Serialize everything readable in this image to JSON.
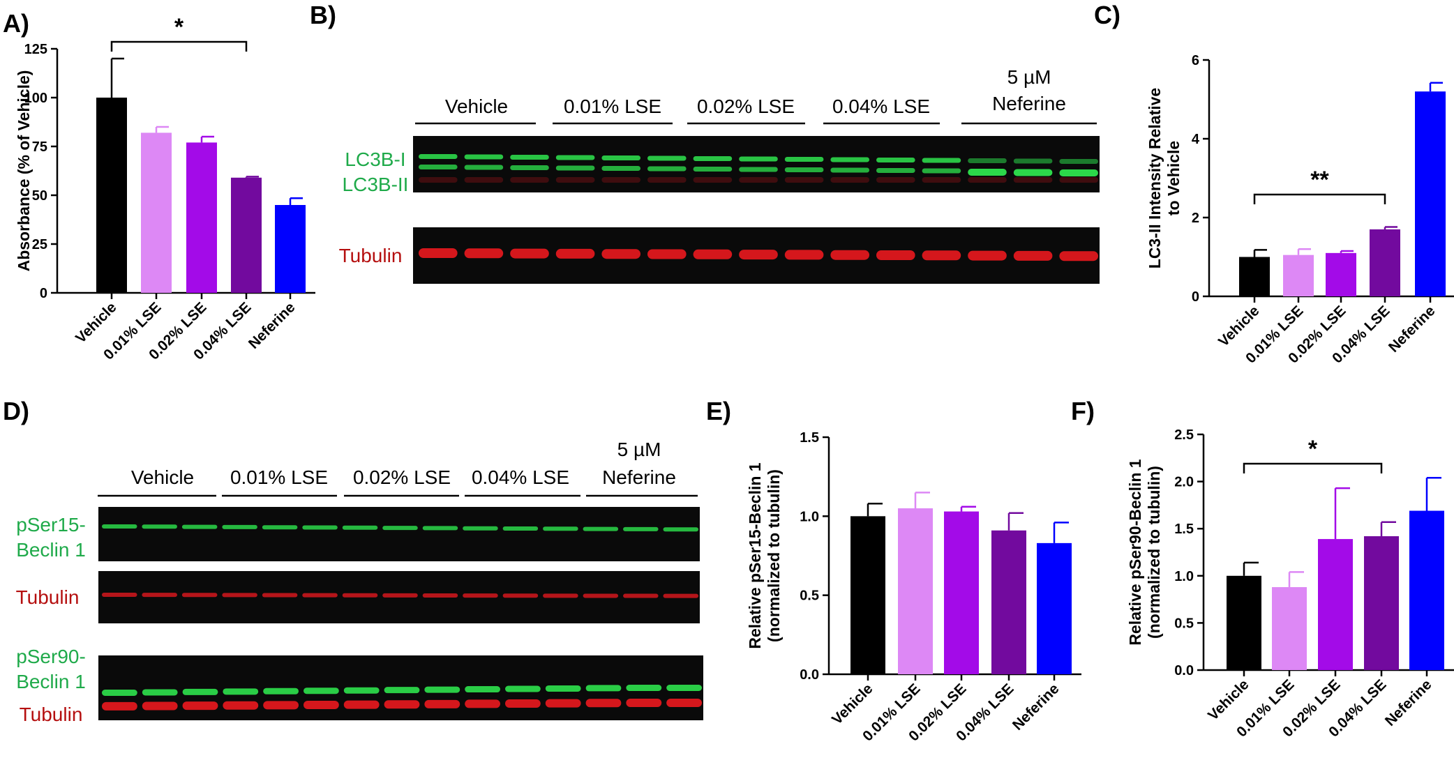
{
  "colors": {
    "vehicle": "#000000",
    "lse001": "#dd88f5",
    "lse002": "#a30be8",
    "lse004": "#720a9e",
    "neferine": "#0000ff",
    "green_label": "#1faa4a",
    "red_label": "#b50f0f",
    "blot_bg": "#0a0a0a",
    "green_band": "#2cd84a",
    "red_band": "#e0181e"
  },
  "panels": {
    "A": "A)",
    "B": "B)",
    "C": "C)",
    "D": "D)",
    "E": "E)",
    "F": "F)"
  },
  "blot_B": {
    "groups": [
      "Vehicle",
      "0.01% LSE",
      "0.02% LSE",
      "0.04% LSE"
    ],
    "neferine_top": "5 µM",
    "neferine_bottom": "Neferine",
    "label_lc3bi": "LC3B-I",
    "label_lc3bii": "LC3B-II",
    "label_tubulin": "Tubulin"
  },
  "blot_D": {
    "groups": [
      "Vehicle",
      "0.01% LSE",
      "0.02% LSE",
      "0.04% LSE"
    ],
    "neferine_top": "5 µM",
    "neferine_bottom": "Neferine",
    "label_pser15_a": "pSer15-",
    "label_pser15_b": "Beclin 1",
    "label_tubulin1": "Tubulin",
    "label_pser90_a": "pSer90-",
    "label_pser90_b": "Beclin 1",
    "label_tubulin2": "Tubulin"
  },
  "chart_data": [
    {
      "id": "A",
      "type": "bar",
      "categories": [
        "Vehicle",
        "0.01% LSE",
        "0.02% LSE",
        "0.04% LSE",
        "Neferine"
      ],
      "values": [
        100,
        82,
        77,
        59,
        45
      ],
      "errors": [
        20,
        3,
        3,
        0.5,
        3.5
      ],
      "ylabel": "Absorbance (% of Vehicle)",
      "ylim": [
        0,
        125
      ],
      "yticks": [
        "0",
        "25",
        "50",
        "75",
        "100",
        "125"
      ],
      "significance": {
        "from": 0,
        "to": 3,
        "label": "*"
      }
    },
    {
      "id": "C",
      "type": "bar",
      "categories": [
        "Vehicle",
        "0.01% LSE",
        "0.02% LSE",
        "0.04% LSE",
        "Neferine"
      ],
      "values": [
        1.0,
        1.05,
        1.1,
        1.7,
        5.2
      ],
      "errors": [
        0.18,
        0.15,
        0.05,
        0.06,
        0.22
      ],
      "ylabel_lines": [
        "LC3-II Intensity Relative",
        "to Vehicle"
      ],
      "ylim": [
        0,
        6
      ],
      "yticks": [
        "0",
        "2",
        "4",
        "6"
      ],
      "significance": {
        "from": 0,
        "to": 3,
        "label": "**"
      }
    },
    {
      "id": "E",
      "type": "bar",
      "categories": [
        "Vehicle",
        "0.01% LSE",
        "0.02% LSE",
        "0.04% LSE",
        "Neferine"
      ],
      "values": [
        1.0,
        1.05,
        1.03,
        0.91,
        0.83
      ],
      "errors": [
        0.08,
        0.1,
        0.03,
        0.11,
        0.13
      ],
      "ylabel_lines": [
        "Relative pSer15-Beclin 1",
        "(normalized to tubulin)"
      ],
      "ylim": [
        0,
        1.5
      ],
      "yticks": [
        "0.0",
        "0.5",
        "1.0",
        "1.5"
      ]
    },
    {
      "id": "F",
      "type": "bar",
      "categories": [
        "Vehicle",
        "0.01% LSE",
        "0.02% LSE",
        "0.04% LSE",
        "Neferine"
      ],
      "values": [
        1.0,
        0.88,
        1.39,
        1.42,
        1.69
      ],
      "errors": [
        0.14,
        0.16,
        0.54,
        0.15,
        0.35
      ],
      "ylabel_lines": [
        "Relative pSer90-Beclin 1",
        "(normalized to tubulin)"
      ],
      "ylim": [
        0,
        2.5
      ],
      "yticks": [
        "0.0",
        "0.5",
        "1.0",
        "1.5",
        "2.0",
        "2.5"
      ],
      "significance": {
        "from": 0,
        "to": 3,
        "label": "*"
      }
    }
  ]
}
